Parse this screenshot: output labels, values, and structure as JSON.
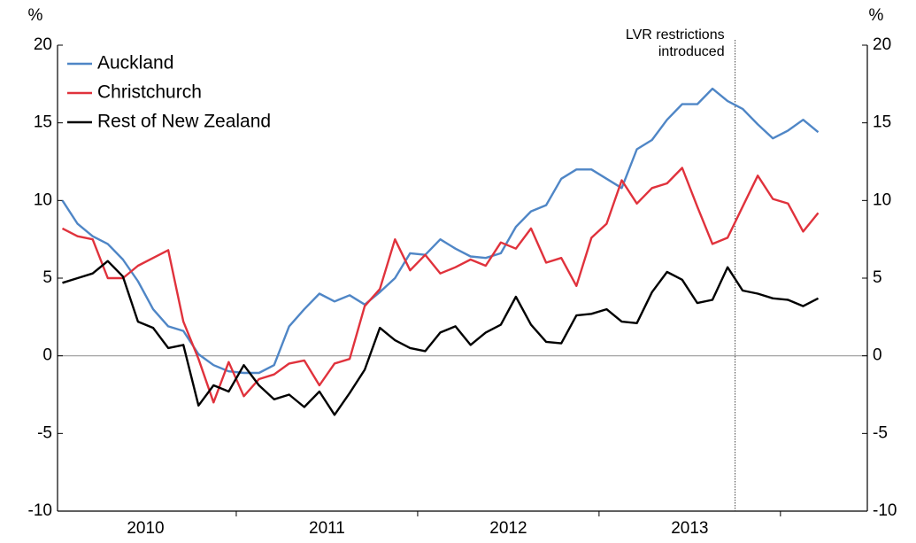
{
  "chart_data": {
    "type": "line",
    "y_unit": "%",
    "y2_unit": "%",
    "categories": [
      null,
      null,
      null,
      null,
      null,
      null,
      null,
      null,
      null,
      null,
      null,
      null,
      null,
      null,
      null,
      null,
      null,
      null,
      null,
      null,
      null,
      null,
      null,
      null,
      null,
      null,
      null,
      null,
      null,
      null,
      null,
      null,
      null,
      null,
      null,
      null,
      null,
      null,
      null,
      null,
      null,
      null,
      null,
      null,
      null,
      null,
      null,
      null,
      null,
      null,
      null
    ],
    "x_labels": [
      "2010",
      "2011",
      "2012",
      "2013"
    ],
    "series": [
      {
        "name": "Auckland",
        "color": "#4f86c6",
        "values": [
          10,
          8.5,
          7.7,
          7.2,
          6.2,
          4.8,
          3.0,
          1.9,
          1.6,
          0.1,
          -0.6,
          -1.0,
          -1.1,
          -1.1,
          -0.6,
          1.9,
          3.0,
          4.0,
          3.5,
          3.9,
          3.3,
          4.1,
          5.0,
          6.6,
          6.5,
          7.5,
          6.9,
          6.4,
          6.3,
          6.6,
          8.3,
          9.3,
          9.7,
          11.4,
          12.0,
          12.0,
          11.4,
          10.8,
          13.3,
          13.9,
          15.2,
          16.2,
          16.2,
          17.2,
          16.4,
          15.9,
          14.9,
          14.0,
          14.5,
          15.2,
          14.4
        ]
      },
      {
        "name": "Christchurch",
        "color": "#e0323c",
        "values": [
          8.2,
          7.7,
          7.5,
          5.0,
          5.0,
          5.8,
          6.3,
          6.8,
          2.2,
          -0.2,
          -3.0,
          -0.4,
          -2.6,
          -1.5,
          -1.2,
          -0.5,
          -0.3,
          -1.9,
          -0.5,
          -0.2,
          3.2,
          4.3,
          7.5,
          5.5,
          6.5,
          5.3,
          5.7,
          6.2,
          5.8,
          7.3,
          6.9,
          8.2,
          6.0,
          6.3,
          4.5,
          7.6,
          8.5,
          11.3,
          9.8,
          10.8,
          11.1,
          12.1,
          9.6,
          7.2,
          7.6,
          9.6,
          11.6,
          10.1,
          9.8,
          8.0,
          9.2
        ]
      },
      {
        "name": "Rest of New Zealand",
        "color": "#000000",
        "values": [
          4.7,
          5.0,
          5.3,
          6.1,
          5.1,
          2.2,
          1.8,
          0.5,
          0.7,
          -3.2,
          -1.9,
          -2.3,
          -0.6,
          -1.9,
          -2.8,
          -2.5,
          -3.3,
          -2.3,
          -3.8,
          -2.4,
          -0.9,
          1.8,
          1.0,
          0.5,
          0.3,
          1.5,
          1.9,
          0.7,
          1.5,
          2.0,
          3.8,
          2.0,
          0.9,
          0.8,
          2.6,
          2.7,
          3.0,
          2.2,
          2.1,
          4.1,
          5.4,
          4.9,
          3.4,
          3.6,
          5.7,
          4.2,
          4.0,
          3.7,
          3.6,
          3.2,
          3.7
        ]
      }
    ],
    "ylim": [
      -10,
      20
    ],
    "yticks": [
      -10,
      -5,
      0,
      5,
      10,
      15,
      20
    ],
    "y2lim": [
      -10,
      20
    ],
    "y2ticks": [
      -10,
      -5,
      0,
      5,
      10,
      15,
      20
    ],
    "annotation": {
      "lines": [
        "LVR restrictions",
        "introduced"
      ],
      "index": 44
    },
    "legend": "top-left"
  }
}
